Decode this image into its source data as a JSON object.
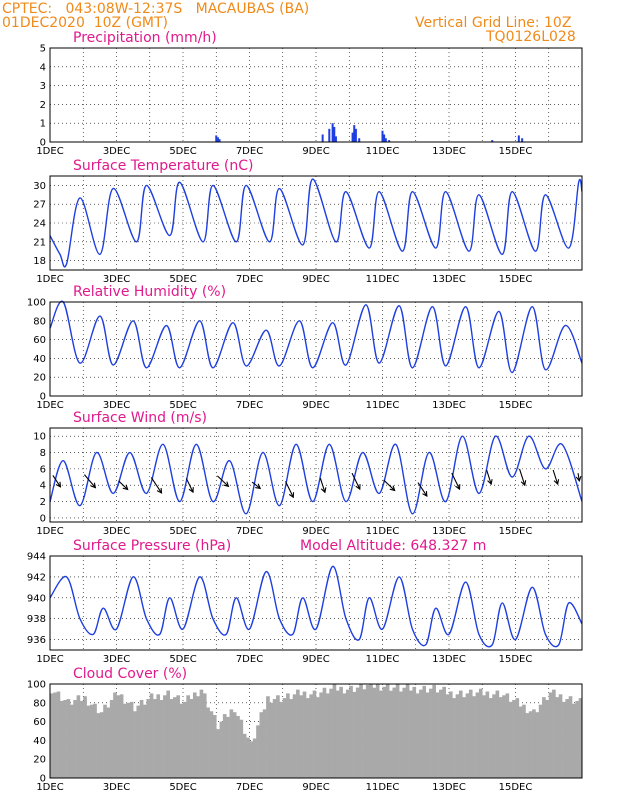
{
  "header": {
    "line1": "CPTEC:   043:08W-12:37S   MACAUBAS (BA)",
    "line2": "01DEC2020  10Z (GMT)",
    "right1": "Vertical Grid Line: 10Z",
    "right2": "TQ0126L028"
  },
  "colors": {
    "series": "#1f3fe0",
    "title": "#e01a8c",
    "header": "#f08a1a",
    "cloud": "#a9a9a9"
  },
  "chart_data": [
    {
      "type": "bar",
      "title": "Precipitation  (mm/h)",
      "ylim": [
        0,
        5
      ],
      "yticks": [
        0,
        1,
        2,
        3,
        4,
        5
      ],
      "xticks": [
        "1DEC",
        "3DEC",
        "5DEC",
        "7DEC",
        "9DEC",
        "11DEC",
        "13DEC",
        "15DEC"
      ],
      "x_days": [
        5.0,
        5.05,
        5.1,
        8.2,
        8.4,
        8.5,
        8.55,
        8.6,
        9.1,
        9.15,
        9.2,
        9.3,
        10.0,
        10.05,
        10.1,
        10.2,
        13.3,
        14.1,
        14.2
      ],
      "values": [
        0.35,
        0.25,
        0.15,
        0.4,
        0.7,
        1.0,
        0.8,
        0.3,
        0.5,
        0.9,
        0.7,
        0.2,
        0.6,
        0.4,
        0.2,
        0.1,
        0.1,
        0.35,
        0.2
      ]
    },
    {
      "type": "line",
      "title": "Surface Temperature  (nC)",
      "ylim": [
        16.5,
        31.5
      ],
      "yticks": [
        18,
        21,
        24,
        27,
        30
      ],
      "xticks": [
        "1DEC",
        "3DEC",
        "5DEC",
        "7DEC",
        "9DEC",
        "11DEC",
        "13DEC",
        "15DEC"
      ],
      "x_days": [
        0,
        0.3,
        0.5,
        0.9,
        1.5,
        1.9,
        2.6,
        2.9,
        3.6,
        3.9,
        4.6,
        4.9,
        5.6,
        5.9,
        6.6,
        6.9,
        7.6,
        7.9,
        8.6,
        8.9,
        9.6,
        9.9,
        10.6,
        10.9,
        11.6,
        11.9,
        12.6,
        12.9,
        13.6,
        13.9,
        14.6,
        14.9,
        15.6,
        15.9,
        16.0
      ],
      "values": [
        22,
        19,
        17.5,
        28,
        19,
        29.5,
        21,
        30,
        22,
        30.5,
        21,
        30,
        21,
        30,
        21,
        29.5,
        20.5,
        31,
        21,
        29,
        20,
        29,
        19.5,
        29,
        20,
        29,
        19.5,
        28.5,
        19,
        29,
        19.5,
        28.5,
        20,
        30.5,
        29
      ]
    },
    {
      "type": "line",
      "title": "Relative Humidity  (%)",
      "ylim": [
        0,
        100
      ],
      "yticks": [
        0,
        20,
        40,
        60,
        80,
        100
      ],
      "xticks": [
        "1DEC",
        "3DEC",
        "5DEC",
        "7DEC",
        "9DEC",
        "11DEC",
        "13DEC",
        "15DEC"
      ],
      "x_days": [
        0,
        0.4,
        0.9,
        1.5,
        1.9,
        2.5,
        2.9,
        3.5,
        3.9,
        4.5,
        4.9,
        5.5,
        5.9,
        6.5,
        6.9,
        7.5,
        7.9,
        8.5,
        8.9,
        9.5,
        9.9,
        10.5,
        10.9,
        11.5,
        11.9,
        12.5,
        12.9,
        13.5,
        13.9,
        14.5,
        14.9,
        15.5,
        16.0
      ],
      "values": [
        72,
        100,
        35,
        85,
        33,
        80,
        30,
        75,
        30,
        80,
        30,
        78,
        32,
        70,
        32,
        80,
        30,
        78,
        33,
        97,
        35,
        96,
        30,
        95,
        32,
        95,
        30,
        90,
        25,
        95,
        28,
        75,
        35
      ]
    },
    {
      "type": "line",
      "title": "Surface Wind  (m/s)",
      "ylim": [
        -0.5,
        11
      ],
      "yticks": [
        0,
        2,
        4,
        6,
        8,
        10
      ],
      "xticks": [
        "1DEC",
        "3DEC",
        "5DEC",
        "7DEC",
        "9DEC",
        "11DEC",
        "13DEC",
        "15DEC"
      ],
      "x_days": [
        0,
        0.4,
        0.9,
        1.4,
        1.9,
        2.4,
        2.9,
        3.4,
        3.9,
        4.4,
        4.9,
        5.4,
        5.9,
        6.4,
        6.9,
        7.4,
        7.9,
        8.4,
        8.9,
        9.4,
        9.9,
        10.4,
        10.9,
        11.4,
        11.9,
        12.4,
        12.9,
        13.4,
        13.9,
        14.4,
        14.9,
        15.4,
        16.0
      ],
      "values": [
        2,
        7,
        1.5,
        8,
        3,
        8,
        3,
        9,
        2,
        9,
        2,
        7,
        0.5,
        8,
        1.5,
        9,
        2,
        9,
        2,
        8,
        3,
        9,
        0.5,
        8,
        2,
        10,
        3,
        10,
        5,
        10,
        6,
        9,
        2
      ],
      "vectors_x_days": [
        0.2,
        1.2,
        2.2,
        3.2,
        4.2,
        5.2,
        6.2,
        7.2,
        8.2,
        9.2,
        10.2,
        11.2,
        12.2,
        13.2,
        14.2,
        15.2,
        15.9
      ],
      "vectors_y": [
        4.5,
        4.5,
        4,
        4,
        4,
        4.5,
        4,
        3.5,
        4,
        4.5,
        4,
        3.5,
        4.5,
        5,
        5,
        5,
        5
      ],
      "vectors_dir_deg": [
        70,
        65,
        60,
        70,
        75,
        60,
        55,
        75,
        80,
        75,
        60,
        70,
        75,
        80,
        80,
        80,
        85
      ],
      "vectors_speed": [
        4,
        5,
        3,
        6,
        5,
        4,
        2,
        6,
        5,
        6,
        4,
        5,
        6,
        5,
        6,
        5,
        2
      ]
    },
    {
      "type": "line",
      "title": "Surface Pressure  (hPa)",
      "annotation": "Model Altitude:  648.327  m",
      "ylim": [
        935,
        944
      ],
      "yticks": [
        936,
        938,
        940,
        942,
        944
      ],
      "xticks": [
        "1DEC",
        "3DEC",
        "5DEC",
        "7DEC",
        "9DEC",
        "11DEC",
        "13DEC",
        "15DEC"
      ],
      "x_days": [
        0,
        0.5,
        0.9,
        1.3,
        1.6,
        2.0,
        2.5,
        2.9,
        3.3,
        3.6,
        4.0,
        4.5,
        4.9,
        5.3,
        5.6,
        6.0,
        6.5,
        6.9,
        7.3,
        7.6,
        8.0,
        8.5,
        8.9,
        9.3,
        9.6,
        10.0,
        10.5,
        10.9,
        11.3,
        11.6,
        12.0,
        12.5,
        12.9,
        13.3,
        13.6,
        14.0,
        14.5,
        14.9,
        15.3,
        15.6,
        16.0
      ],
      "values": [
        940,
        942,
        938,
        936.5,
        939,
        937,
        942,
        938,
        936.5,
        940,
        937,
        942,
        938,
        936.5,
        940,
        937,
        942.5,
        938,
        936.5,
        940,
        937,
        943,
        938,
        936,
        940,
        937,
        942,
        937,
        935.5,
        939,
        936.5,
        941.5,
        936.5,
        935.5,
        939.5,
        936,
        941,
        936.5,
        935.5,
        939.5,
        937.5
      ]
    },
    {
      "type": "bar",
      "title": "Cloud Cover  (%)",
      "ylim": [
        0,
        100
      ],
      "yticks": [
        0,
        20,
        40,
        60,
        80,
        100
      ],
      "xticks": [
        "1DEC",
        "3DEC",
        "5DEC",
        "7DEC",
        "9DEC",
        "11DEC",
        "13DEC",
        "15DEC"
      ],
      "x_days": [
        0,
        0.5,
        1.0,
        1.5,
        2.0,
        2.5,
        3.0,
        3.5,
        4.0,
        4.5,
        5.0,
        5.5,
        6.0,
        6.5,
        7.0,
        7.5,
        8.0,
        8.5,
        9.0,
        9.5,
        10.0,
        10.5,
        11.0,
        11.5,
        12.0,
        12.5,
        13.0,
        13.5,
        14.0,
        14.5,
        15.0,
        15.5,
        16.0
      ],
      "values": [
        95,
        80,
        85,
        70,
        90,
        75,
        85,
        90,
        80,
        95,
        55,
        75,
        35,
        85,
        85,
        90,
        90,
        95,
        95,
        98,
        98,
        95,
        95,
        95,
        90,
        90,
        90,
        90,
        80,
        70,
        90,
        85,
        80
      ]
    }
  ]
}
